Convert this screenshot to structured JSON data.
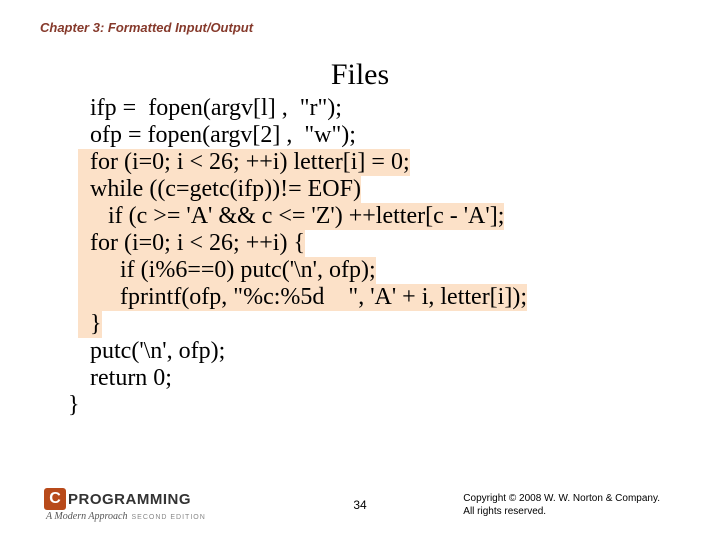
{
  "chapter_header": "Chapter 3: Formatted Input/Output",
  "title": "Files",
  "code": {
    "l1": "  ifp =  fopen(argv[l] ,  \"r\");",
    "l2": "  ofp = fopen(argv[2] ,  \"w\");",
    "l3": "  for (i=0; i < 26; ++i) letter[i] = 0;",
    "l4": "  while ((c=getc(ifp))!= EOF)",
    "l5": "     if (c >= 'A' && c <= 'Z') ++letter[c - 'A'];",
    "l6": "  for (i=0; i < 26; ++i) {",
    "l7": "       if (i%6==0) putc('\\n', ofp);",
    "l8": "       fprintf(ofp, \"%c:%5d    \", 'A' + i, letter[i]);",
    "l9": "  }",
    "l10": "  putc('\\n', ofp);",
    "l11": "  return 0;",
    "l12": "}"
  },
  "page_number": "34",
  "copyright_l1": "Copyright © 2008 W. W. Norton & Company.",
  "copyright_l2": "All rights reserved.",
  "logo": {
    "c": "C",
    "text": "PROGRAMMING",
    "sub": "A Modern Approach",
    "edition": "SECOND EDITION"
  },
  "colors": {
    "header_color": "#863a2c",
    "highlight_bg": "#fce1c8",
    "logo_badge": "#b84a1a"
  }
}
